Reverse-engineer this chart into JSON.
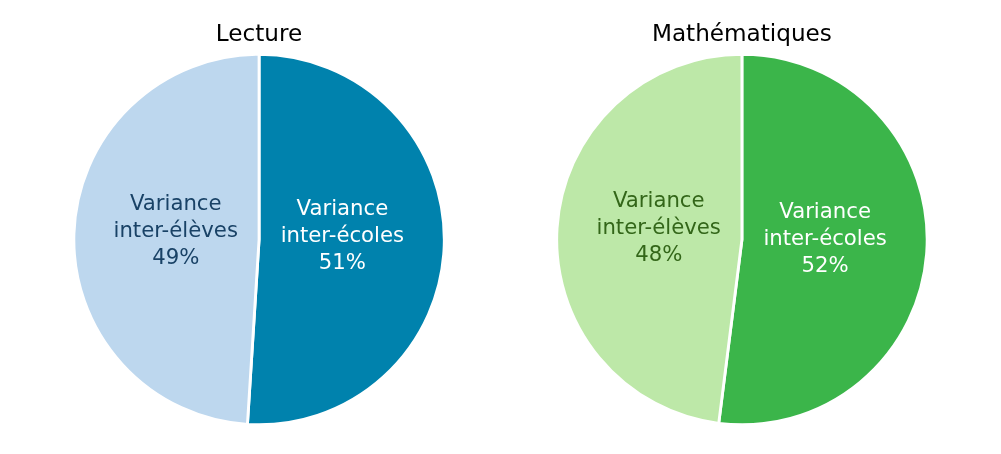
{
  "chart_data": [
    {
      "type": "pie",
      "title": "Lecture",
      "categories": [
        "Variance inter-écoles",
        "Variance inter-élèves"
      ],
      "values": [
        51,
        49
      ],
      "value_labels": [
        "51%",
        "49%"
      ],
      "colors": [
        "#0082ad",
        "#bdd7ee"
      ]
    },
    {
      "type": "pie",
      "title": "Mathématiques",
      "categories": [
        "Variance inter-écoles",
        "Variance inter-élèves"
      ],
      "values": [
        52,
        48
      ],
      "value_labels": [
        "52%",
        "48%"
      ],
      "colors": [
        "#3bb54a",
        "#bde8a8"
      ]
    }
  ]
}
